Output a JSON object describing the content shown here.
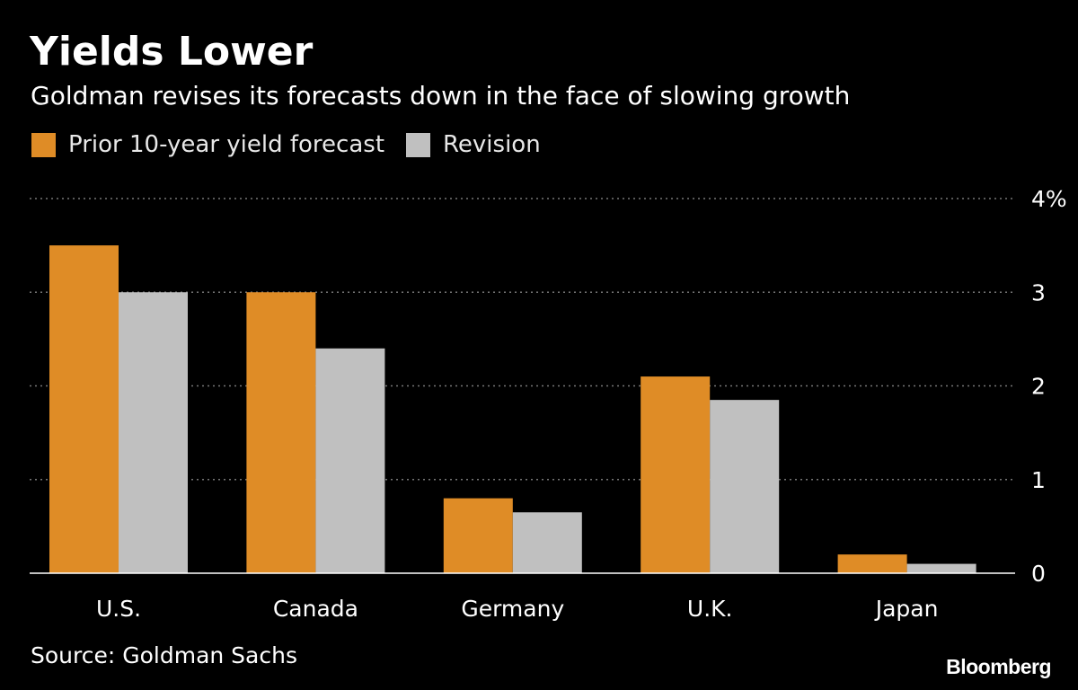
{
  "header": {
    "title": "Yields Lower",
    "subtitle": "Goldman revises its forecasts down in the face of slowing growth"
  },
  "footer": {
    "source": "Source: Goldman Sachs",
    "brand": "Bloomberg"
  },
  "colors": {
    "background": "#000000",
    "prior": "#DF8C26",
    "revision": "#C0C0C0",
    "gridline": "#777777",
    "text": "#FFFFFF"
  },
  "chart_data": {
    "type": "bar",
    "categories": [
      "U.S.",
      "Canada",
      "Germany",
      "U.K.",
      "Japan"
    ],
    "series": [
      {
        "name": "Prior 10-year yield forecast",
        "color": "#DF8C26",
        "values": [
          3.5,
          3.0,
          0.8,
          2.1,
          0.2
        ]
      },
      {
        "name": "Revision",
        "color": "#C0C0C0",
        "values": [
          3.0,
          2.4,
          0.65,
          1.85,
          0.1
        ]
      }
    ],
    "title": "Yields Lower",
    "subtitle": "Goldman revises its forecasts down in the face of slowing growth",
    "xlabel": "",
    "ylabel": "",
    "ylim": [
      0,
      4
    ],
    "yticks": [
      0,
      1,
      2,
      3,
      4
    ],
    "ytick_labels": [
      "0",
      "1",
      "2",
      "3",
      "4%"
    ],
    "y_axis_position": "right",
    "grid": true,
    "grid_style": "dotted",
    "legend_position": "top-left"
  }
}
